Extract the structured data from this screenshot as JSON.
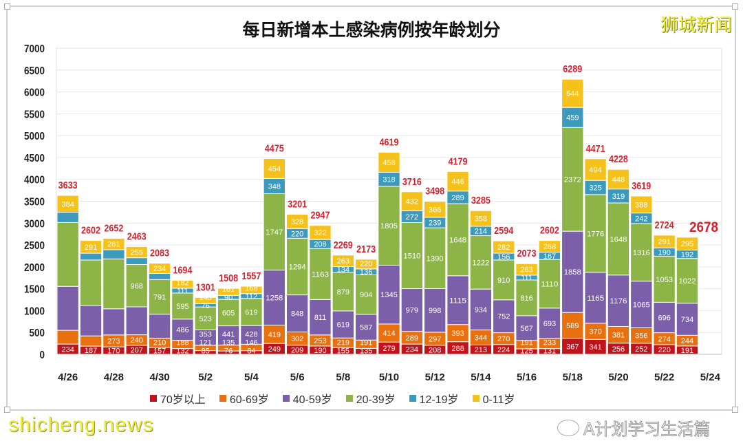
{
  "chart_data": {
    "type": "bar",
    "stacked": true,
    "title": "每日新增本土感染病例按年龄划分",
    "categories": [
      "4/26",
      "4/27",
      "4/28",
      "4/29",
      "4/30",
      "5/1",
      "5/2",
      "5/3",
      "5/4",
      "5/5",
      "5/6",
      "5/7",
      "5/8",
      "5/9",
      "5/10",
      "5/11",
      "5/12",
      "5/13",
      "5/14",
      "5/15",
      "5/16",
      "5/17",
      "5/18",
      "5/19",
      "5/20",
      "5/21",
      "5/22",
      "5/23"
    ],
    "x_tick_labels": [
      "4/26",
      "4/28",
      "4/30",
      "5/2",
      "5/4",
      "5/6",
      "5/8",
      "5/10",
      "5/12",
      "5/14",
      "5/16",
      "5/18",
      "5/20",
      "5/22",
      "5/24"
    ],
    "y_tick_labels": [
      "0",
      "500",
      "1000",
      "1500",
      "2000",
      "2500",
      "3000",
      "3500",
      "4000",
      "4500",
      "5000",
      "5500",
      "6000",
      "6500",
      "7000"
    ],
    "ylim": [
      0,
      7000
    ],
    "grid": true,
    "legend": "bottom",
    "totals": [
      3633,
      2602,
      2652,
      2463,
      2083,
      1694,
      1301,
      1508,
      1557,
      4475,
      3201,
      2947,
      2269,
      2173,
      4619,
      3716,
      3498,
      4179,
      3285,
      2594,
      2073,
      2602,
      6289,
      4471,
      4228,
      3619,
      2724,
      2678
    ],
    "total_color": "#d42330",
    "series": [
      {
        "name": "70岁以上",
        "color": "#c0141c",
        "values": [
          234,
          187,
          170,
          207,
          157,
          132,
          85,
          76,
          84,
          249,
          209,
          190,
          155,
          135,
          279,
          234,
          208,
          288,
          213,
          224,
          125,
          131,
          367,
          341,
          256,
          252,
          220,
          191
        ],
        "labels": [
          234,
          187,
          170,
          207,
          157,
          132,
          85,
          76,
          84,
          249,
          209,
          190,
          155,
          135,
          279,
          234,
          208,
          288,
          213,
          224,
          125,
          131,
          367,
          341,
          256,
          252,
          220,
          191
        ]
      },
      {
        "name": "60-69岁",
        "color": "#e8700e",
        "values": [
          315,
          234,
          273,
          240,
          210,
          188,
          121,
          135,
          146,
          419,
          302,
          253,
          219,
          191,
          414,
          289,
          297,
          393,
          344,
          270,
          191,
          233,
          589,
          370,
          381,
          356,
          274,
          244
        ],
        "labels": [
          null,
          null,
          273,
          240,
          210,
          188,
          121,
          135,
          146,
          419,
          302,
          253,
          219,
          191,
          414,
          289,
          297,
          393,
          344,
          270,
          191,
          233,
          589,
          370,
          381,
          356,
          274,
          244
        ]
      },
      {
        "name": "40-59岁",
        "color": "#7b5fa9",
        "values": [
          1005,
          695,
          598,
          638,
          551,
          486,
          353,
          441,
          428,
          1258,
          848,
          811,
          619,
          587,
          1345,
          979,
          998,
          1115,
          934,
          752,
          567,
          693,
          1858,
          1165,
          1176,
          1065,
          696,
          734
        ],
        "labels": [
          null,
          null,
          null,
          null,
          null,
          486,
          353,
          441,
          428,
          1258,
          848,
          811,
          619,
          587,
          1345,
          979,
          998,
          1115,
          934,
          752,
          567,
          693,
          1858,
          1165,
          1176,
          1065,
          696,
          734
        ]
      },
      {
        "name": "20-39岁",
        "color": "#8cb446",
        "values": [
          1460,
          1040,
          1140,
          968,
          791,
          595,
          523,
          605,
          619,
          1747,
          1294,
          1163,
          879,
          904,
          1805,
          1510,
          1390,
          1648,
          1222,
          910,
          816,
          1110,
          2372,
          1776,
          1648,
          1316,
          1053,
          1022
        ],
        "labels": [
          null,
          null,
          null,
          968,
          791,
          595,
          523,
          605,
          619,
          1747,
          1294,
          1163,
          879,
          904,
          1805,
          1510,
          1390,
          1648,
          1222,
          910,
          816,
          1110,
          2372,
          1776,
          1648,
          1316,
          1053,
          1022
        ]
      },
      {
        "name": "12-19岁",
        "color": "#3c9bbd",
        "values": [
          235,
          155,
          210,
          155,
          140,
          111,
          76,
          90,
          112,
          348,
          220,
          208,
          134,
          136,
          318,
          272,
          239,
          289,
          214,
          156,
          111,
          167,
          459,
          325,
          319,
          242,
          190,
          192
        ],
        "labels": [
          null,
          null,
          null,
          null,
          null,
          111,
          76,
          90,
          112,
          348,
          220,
          208,
          134,
          136,
          318,
          272,
          239,
          289,
          214,
          156,
          111,
          167,
          459,
          325,
          319,
          242,
          190,
          192
        ]
      },
      {
        "name": "0-11岁",
        "color": "#f4c21b",
        "values": [
          384,
          291,
          261,
          255,
          234,
          182,
          143,
          161,
          168,
          454,
          328,
          322,
          263,
          220,
          458,
          432,
          366,
          446,
          358,
          282,
          263,
          268,
          644,
          494,
          448,
          388,
          291,
          295
        ],
        "labels": [
          384,
          291,
          261,
          255,
          234,
          182,
          143,
          161,
          168,
          454,
          328,
          322,
          263,
          220,
          458,
          432,
          366,
          446,
          358,
          282,
          263,
          268,
          644,
          494,
          448,
          388,
          291,
          295
        ]
      }
    ]
  },
  "logo": "狮城新闻",
  "watermarks": {
    "site": "shicheng.news",
    "wechat": "A计划学习生活篇"
  }
}
